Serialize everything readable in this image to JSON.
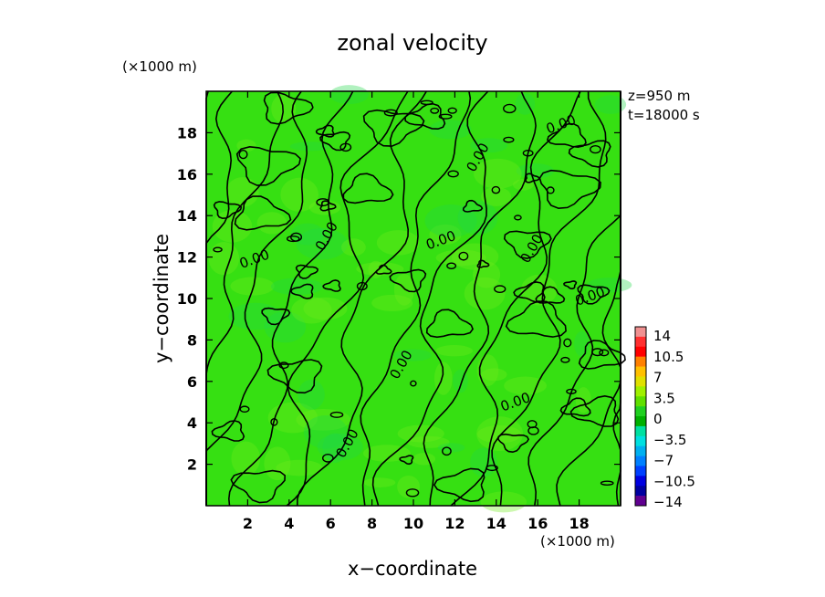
{
  "chart_data": {
    "type": "heatmap",
    "title": "zonal velocity",
    "xlabel": "x−coordinate",
    "ylabel": "y−coordinate",
    "x_unit": "(×1000 m)",
    "y_unit": "(×1000 m)",
    "xlim": [
      0,
      20
    ],
    "ylim": [
      0,
      20
    ],
    "x_ticks": [
      "2",
      "4",
      "6",
      "8",
      "10",
      "12",
      "14",
      "16",
      "18"
    ],
    "y_ticks": [
      "2",
      "4",
      "6",
      "8",
      "10",
      "12",
      "14",
      "16",
      "18"
    ],
    "annotations": {
      "z": "z=950 m",
      "t": "t=18000 s"
    },
    "contour_labels": [
      "0.00",
      "0.00",
      "0.00",
      "0.00",
      "0.00",
      "0.00",
      "0.00",
      "0.00",
      "0.00",
      "0.00"
    ],
    "colorbar": {
      "labels": [
        "14",
        "10.5",
        "7",
        "3.5",
        "0",
        "−3.5",
        "−7",
        "−10.5",
        "−14"
      ],
      "colors": [
        "#f09090",
        "#ff3030",
        "#ff0000",
        "#ff8000",
        "#ffc000",
        "#e0e000",
        "#a0f000",
        "#60e000",
        "#20d020",
        "#00b000",
        "#00e0a0",
        "#00e0e0",
        "#00b0f0",
        "#0080ff",
        "#0040ff",
        "#0000e0",
        "#0000a0",
        "#600090"
      ]
    },
    "field_colors": {
      "base": "#36e012",
      "light": "#6fec1e",
      "cool": "#20d848"
    },
    "contour_color": "#000000"
  }
}
